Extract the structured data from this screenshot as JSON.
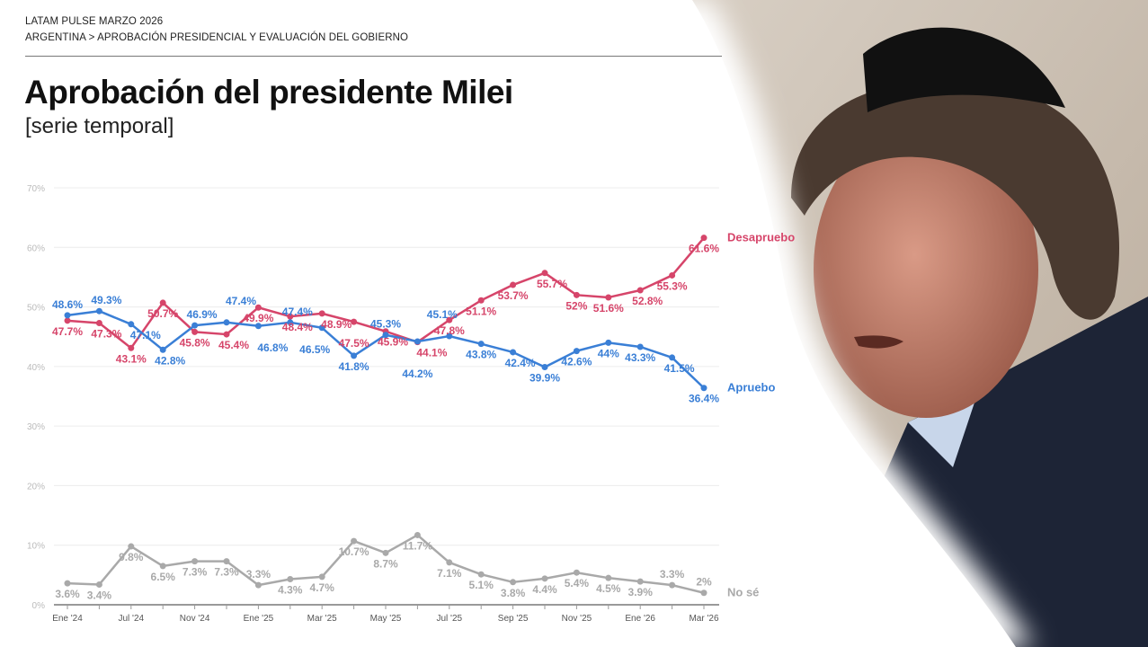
{
  "header": {
    "kicker": "LATAM PULSE MARZO 2026",
    "breadcrumb": "ARGENTINA > APROBACIÓN PRESIDENCIAL Y EVALUACIÓN DEL GOBIERNO",
    "title": "Aprobación del presidente Milei",
    "subtitle": "[serie temporal]"
  },
  "chart_data": {
    "type": "line",
    "title": "Aprobación del presidente Milei",
    "subtitle": "[serie temporal]",
    "xlabel": "",
    "ylabel": "",
    "ylim": [
      0,
      70
    ],
    "yticks": [
      "0%",
      "10%",
      "20%",
      "30%",
      "40%",
      "50%",
      "60%",
      "70%"
    ],
    "ytick_values": [
      0,
      10,
      20,
      30,
      40,
      50,
      60,
      70
    ],
    "grid": true,
    "legend": "inline-right",
    "x_tick_labels": [
      "Ene '24",
      "",
      "Jul '24",
      "",
      "Nov '24",
      "",
      "Ene '25",
      "",
      "Mar '25",
      "",
      "May '25",
      "",
      "Jul '25",
      "",
      "Sep '25",
      "",
      "Nov '25",
      "",
      "Ene '26",
      "",
      "Mar '26"
    ],
    "series": [
      {
        "name": "Desapruebo",
        "color": "#d6456a",
        "values": [
          47.7,
          47.3,
          43.1,
          50.7,
          45.8,
          45.4,
          49.9,
          48.4,
          48.9,
          47.5,
          45.9,
          44.1,
          47.8,
          51.1,
          53.7,
          55.7,
          52,
          51.6,
          52.8,
          55.3,
          61.6
        ]
      },
      {
        "name": "Apruebo",
        "color": "#3a7fd6",
        "values": [
          48.6,
          49.3,
          47.1,
          42.8,
          46.9,
          47.4,
          46.8,
          47.4,
          46.5,
          41.8,
          45.3,
          44.2,
          45.1,
          43.8,
          42.4,
          39.9,
          42.6,
          44,
          43.3,
          41.5,
          36.4
        ]
      },
      {
        "name": "No sé",
        "color": "#a9a9a9",
        "values": [
          3.6,
          3.4,
          9.8,
          6.5,
          7.3,
          7.3,
          3.3,
          4.3,
          4.7,
          10.7,
          8.7,
          11.7,
          7.1,
          5.1,
          3.8,
          4.4,
          5.4,
          4.5,
          3.9,
          3.3,
          2
        ]
      }
    ]
  },
  "colors": {
    "disapprove": "#d6456a",
    "approve": "#3a7fd6",
    "unsure": "#a9a9a9"
  }
}
